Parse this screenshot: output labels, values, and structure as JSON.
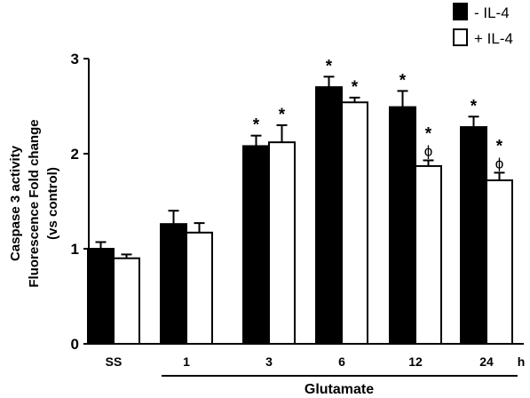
{
  "chart_data": {
    "type": "bar",
    "categories": [
      "SS",
      "1",
      "3",
      "6",
      "12",
      "24"
    ],
    "x_unit": "h",
    "group_label": "Glutamate",
    "ylabel_lines": [
      "Caspase 3 activity",
      "Fluorescence Fold change",
      "(vs control)"
    ],
    "ylim": [
      0,
      3
    ],
    "yticks": [
      "0",
      "1",
      "2",
      "3"
    ],
    "grid": false,
    "legend_position": "top-right",
    "series": [
      {
        "name": "- IL-4",
        "color": "#000000",
        "values": [
          1.0,
          1.26,
          2.08,
          2.7,
          2.49,
          2.28
        ],
        "errors": [
          0.07,
          0.14,
          0.11,
          0.11,
          0.17,
          0.11
        ],
        "annotations": [
          "",
          "",
          "*",
          "*",
          "*",
          "*"
        ]
      },
      {
        "name": "+ IL-4",
        "color": "#ffffff",
        "values": [
          0.9,
          1.17,
          2.12,
          2.54,
          1.87,
          1.72
        ],
        "errors": [
          0.04,
          0.1,
          0.18,
          0.05,
          0.06,
          0.08
        ],
        "annotations": [
          "",
          "",
          "*",
          "*",
          "*\nϕ",
          "*\nϕ"
        ]
      }
    ]
  }
}
